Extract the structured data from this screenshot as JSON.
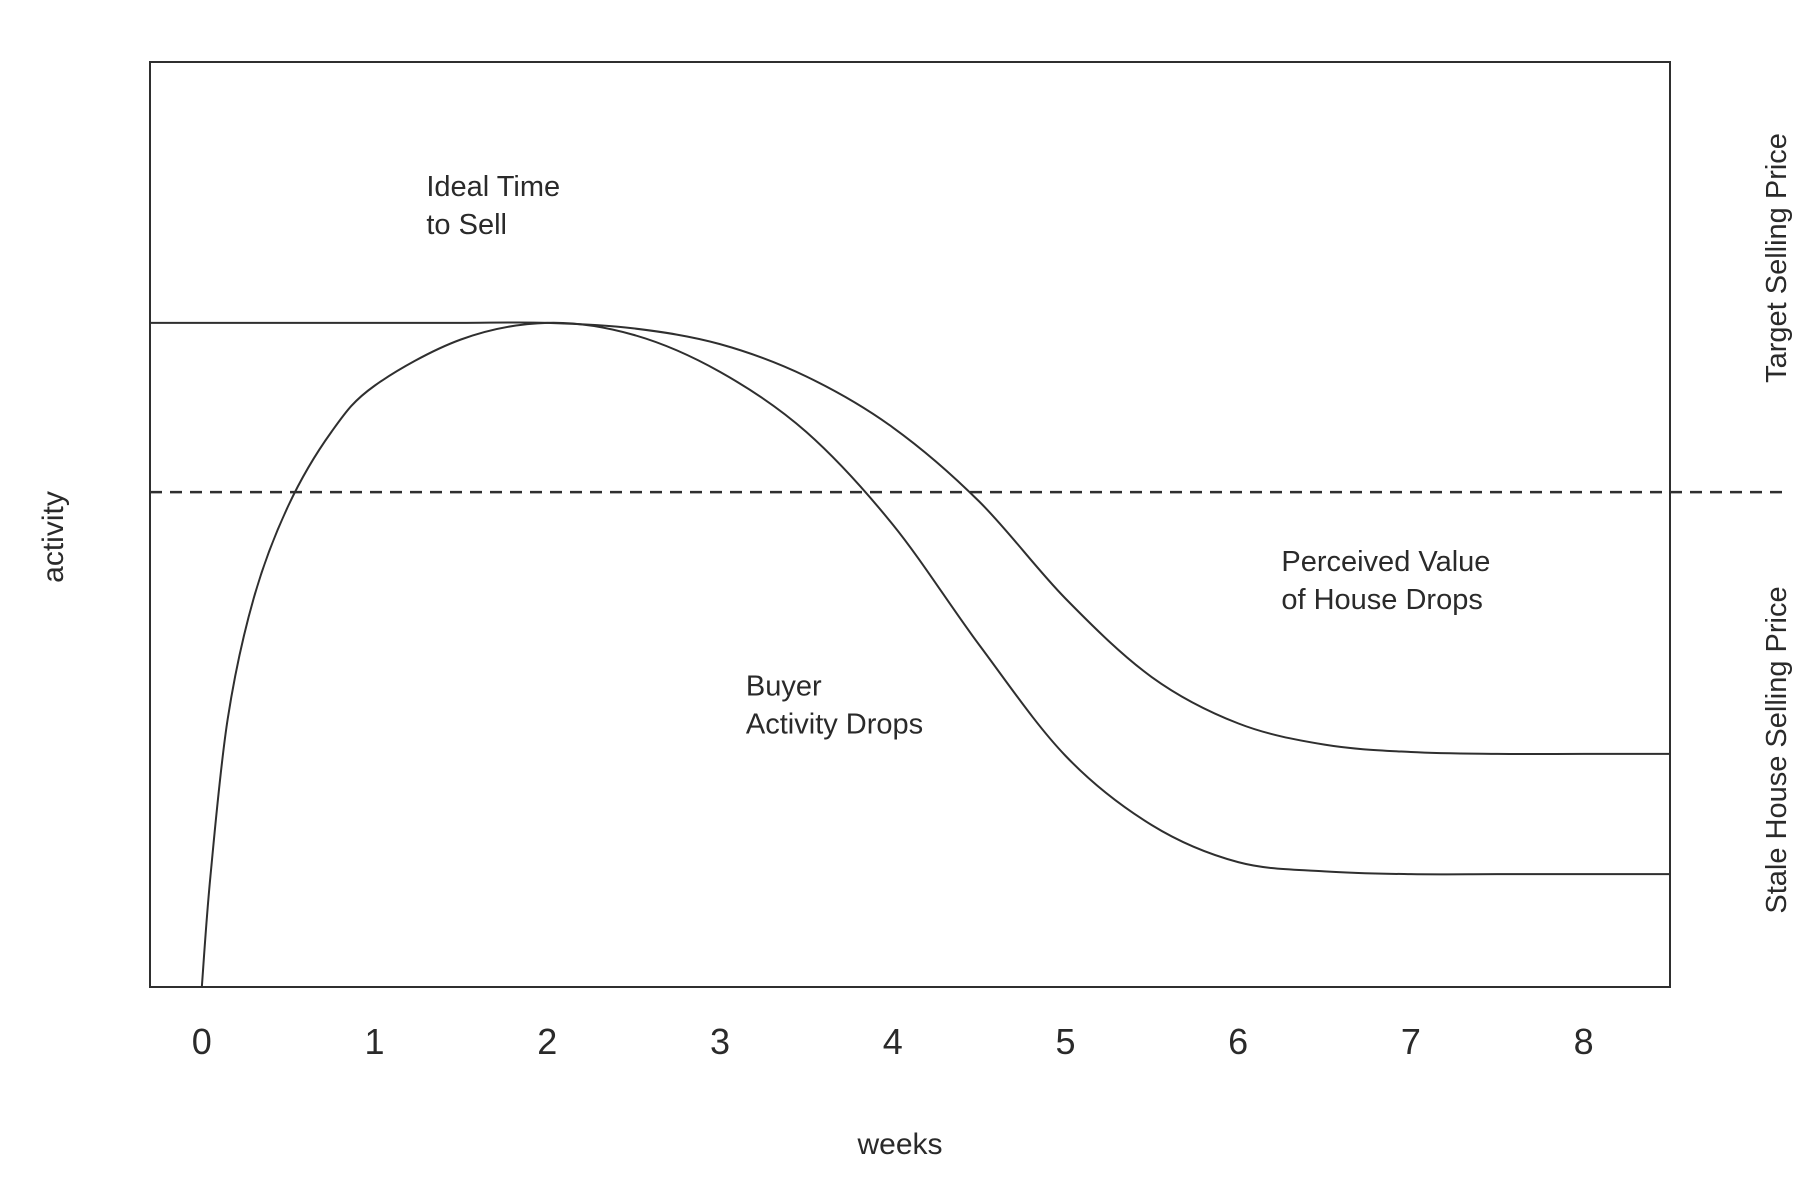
{
  "chart_data": {
    "type": "line",
    "title": "",
    "xlabel": "weeks",
    "ylabel": "activity",
    "xlim": [
      -0.3,
      8.5
    ],
    "ylim": [
      0,
      1
    ],
    "x_ticks": [
      0,
      1,
      2,
      3,
      4,
      5,
      6,
      7,
      8
    ],
    "x_tick_labels": [
      "0",
      "1",
      "2",
      "3",
      "4",
      "5",
      "6",
      "7",
      "8"
    ],
    "grid": false,
    "legend": "none",
    "right_labels": {
      "upper": "Target Selling Price",
      "lower": "Stale House Selling Price"
    },
    "threshold": {
      "y": 0.535,
      "style": "dashed"
    },
    "series": [
      {
        "x": [
          -0.3,
          0.5,
          1.0,
          1.5,
          2.0,
          2.5,
          3.0,
          3.5,
          4.0,
          4.5,
          5.0,
          5.5,
          6.0,
          6.5,
          7.0,
          7.5,
          8.0,
          8.5
        ],
        "y": [
          0.718,
          0.718,
          0.718,
          0.718,
          0.718,
          0.712,
          0.695,
          0.66,
          0.605,
          0.525,
          0.42,
          0.335,
          0.285,
          0.262,
          0.254,
          0.252,
          0.252,
          0.252
        ]
      },
      {
        "x": [
          0.0,
          0.05,
          0.15,
          0.3,
          0.5,
          0.75,
          1.0,
          1.5,
          2.0,
          2.5,
          3.0,
          3.5,
          4.0,
          4.5,
          5.0,
          5.5,
          6.0,
          6.5,
          7.0,
          7.5,
          8.0,
          8.5
        ],
        "y": [
          0.0,
          0.12,
          0.29,
          0.42,
          0.52,
          0.6,
          0.65,
          0.7,
          0.718,
          0.705,
          0.665,
          0.6,
          0.5,
          0.37,
          0.25,
          0.175,
          0.135,
          0.125,
          0.122,
          0.122,
          0.122,
          0.122
        ]
      }
    ],
    "annotations": [
      {
        "lines": [
          "Ideal Time",
          "to Sell"
        ],
        "x": 1.3,
        "y": 0.855
      },
      {
        "lines": [
          "Perceived Value",
          "of House Drops"
        ],
        "x": 6.25,
        "y": 0.45
      },
      {
        "lines": [
          "Buyer",
          "Activity Drops"
        ],
        "x": 3.15,
        "y": 0.315
      }
    ]
  },
  "colors": {
    "line": "#2f2f2f",
    "text": "#2a2a2a",
    "background": "#ffffff"
  }
}
